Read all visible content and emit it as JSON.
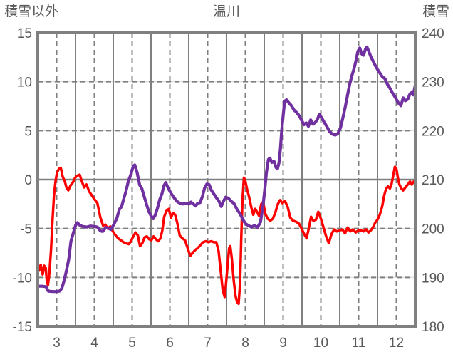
{
  "page": {
    "left_header": "積雪以外",
    "title_header": "温川",
    "right_header": "積雪"
  },
  "colors": {
    "background": "#ffffff",
    "text": "#595959",
    "grid_dash": "#7f7f7f",
    "grid_light": "#d9d9d9",
    "zero_line": "#808080",
    "border": "#808080",
    "series_red": "#ff0000",
    "series_purple": "#7030a0"
  },
  "chart_data": {
    "type": "line",
    "title": "温川",
    "x_axis": {
      "min": 2.5,
      "max": 12.5,
      "major_ticks": [
        3,
        4,
        5,
        6,
        7,
        8,
        9,
        10,
        11,
        12
      ],
      "boundary_lines": [
        3.5,
        4.5,
        5.5,
        6.5,
        7.5,
        8.5,
        9.5,
        10.5,
        11.5
      ]
    },
    "left_axis": {
      "label": "積雪以外",
      "min": -15,
      "max": 15,
      "ticks": [
        15,
        10,
        5,
        0,
        -5,
        -10,
        -15
      ],
      "zero_line": 0
    },
    "right_axis": {
      "label": "積雪",
      "min": 180,
      "max": 240,
      "ticks": [
        240,
        230,
        220,
        210,
        200,
        190,
        180
      ]
    },
    "grid": true,
    "legend": "none",
    "series": [
      {
        "name": "積雪以外",
        "axis": "left",
        "color": "#ff0000",
        "width": 3.5,
        "x": [
          2.5,
          2.54,
          2.58,
          2.63,
          2.67,
          2.71,
          2.74,
          2.77,
          2.81,
          2.85,
          2.89,
          2.93,
          2.97,
          3.01,
          3.06,
          3.11,
          3.16,
          3.21,
          3.26,
          3.31,
          3.37,
          3.43,
          3.49,
          3.55,
          3.61,
          3.67,
          3.73,
          3.79,
          3.86,
          3.93,
          4.0,
          4.08,
          4.16,
          4.23,
          4.29,
          4.35,
          4.42,
          4.49,
          4.56,
          4.63,
          4.7,
          4.77,
          4.84,
          4.91,
          4.97,
          5.03,
          5.09,
          5.15,
          5.21,
          5.27,
          5.33,
          5.39,
          5.45,
          5.51,
          5.57,
          5.63,
          5.69,
          5.75,
          5.8,
          5.85,
          5.91,
          5.97,
          6.03,
          6.08,
          6.14,
          6.2,
          6.26,
          6.33,
          6.4,
          6.47,
          6.54,
          6.6,
          6.67,
          6.74,
          6.81,
          6.88,
          6.95,
          7.02,
          7.09,
          7.16,
          7.23,
          7.29,
          7.35,
          7.4,
          7.45,
          7.49,
          7.53,
          7.57,
          7.6,
          7.64,
          7.69,
          7.74,
          7.78,
          7.82,
          7.86,
          7.89,
          7.92,
          7.96,
          7.99,
          8.04,
          8.1,
          8.16,
          8.21,
          8.26,
          8.31,
          8.36,
          8.42,
          8.47,
          8.53,
          8.59,
          8.66,
          8.73,
          8.8,
          8.86,
          8.92,
          8.98,
          9.05,
          9.12,
          9.19,
          9.26,
          9.34,
          9.42,
          9.5,
          9.56,
          9.62,
          9.68,
          9.74,
          9.8,
          9.87,
          9.93,
          10.0,
          10.07,
          10.14,
          10.21,
          10.28,
          10.35,
          10.42,
          10.5,
          10.57,
          10.64,
          10.71,
          10.78,
          10.85,
          10.92,
          10.99,
          11.06,
          11.13,
          11.2,
          11.26,
          11.32,
          11.38,
          11.44,
          11.5,
          11.56,
          11.62,
          11.68,
          11.73,
          11.78,
          11.83,
          11.87,
          11.92,
          11.96,
          12.0,
          12.04,
          12.08,
          12.13,
          12.18,
          12.24,
          12.3,
          12.36,
          12.41,
          12.46,
          12.5
        ],
        "y": [
          -8.6,
          -9.3,
          -8.7,
          -9.7,
          -8.8,
          -9.0,
          -10.3,
          -10.8,
          -9.5,
          -7.2,
          -4.2,
          -1.6,
          -0.2,
          0.7,
          1.1,
          1.2,
          0.3,
          -0.1,
          -0.8,
          -1.1,
          -0.6,
          -0.3,
          0.2,
          0.4,
          0.5,
          -0.2,
          -0.8,
          -0.5,
          -1.2,
          -1.6,
          -2.0,
          -2.4,
          -3.9,
          -4.7,
          -4.6,
          -5.0,
          -4.8,
          -5.3,
          -5.7,
          -6.0,
          -6.2,
          -6.4,
          -6.5,
          -6.6,
          -6.3,
          -5.8,
          -5.4,
          -5.7,
          -6.8,
          -6.5,
          -5.9,
          -5.8,
          -6.1,
          -6.2,
          -5.8,
          -6.1,
          -6.3,
          -6.0,
          -5.2,
          -3.8,
          -3.2,
          -3.0,
          -3.9,
          -3.4,
          -3.6,
          -4.5,
          -5.7,
          -6.0,
          -6.2,
          -7.0,
          -7.8,
          -7.5,
          -7.2,
          -7.0,
          -6.7,
          -6.4,
          -6.3,
          -6.4,
          -6.3,
          -6.4,
          -6.4,
          -7.3,
          -9.5,
          -11.3,
          -12.0,
          -10.5,
          -8.7,
          -7.0,
          -6.8,
          -8.0,
          -10.3,
          -11.9,
          -12.5,
          -12.7,
          -10.5,
          -6.0,
          -2.3,
          0.2,
          0.0,
          -0.9,
          -1.8,
          -2.9,
          -3.6,
          -3.0,
          -3.3,
          -3.7,
          -2.5,
          -2.3,
          -3.5,
          -4.0,
          -4.2,
          -4.0,
          -3.3,
          -2.5,
          -2.1,
          -2.4,
          -2.2,
          -2.8,
          -3.9,
          -4.2,
          -4.3,
          -4.5,
          -5.1,
          -5.6,
          -6.0,
          -5.0,
          -3.8,
          -4.2,
          -4.1,
          -3.3,
          -4.0,
          -4.9,
          -5.8,
          -6.5,
          -5.6,
          -5.1,
          -5.3,
          -5.2,
          -5.1,
          -5.5,
          -4.9,
          -5.3,
          -5.1,
          -5.4,
          -5.2,
          -5.2,
          -5.3,
          -5.1,
          -5.4,
          -5.2,
          -4.9,
          -4.4,
          -4.1,
          -3.6,
          -2.8,
          -1.6,
          -0.9,
          -0.7,
          -0.9,
          -0.5,
          0.5,
          1.3,
          1.1,
          0.2,
          -0.5,
          -0.9,
          -1.1,
          -0.8,
          -0.5,
          -0.2,
          -0.5,
          -0.2,
          -0.3
        ]
      },
      {
        "name": "積雪",
        "axis": "right",
        "color": "#7030a0",
        "width": 4.2,
        "x": [
          2.5,
          2.62,
          2.72,
          2.78,
          2.9,
          3.0,
          3.08,
          3.14,
          3.2,
          3.26,
          3.32,
          3.38,
          3.44,
          3.5,
          3.55,
          3.62,
          3.7,
          3.8,
          3.9,
          4.0,
          4.08,
          4.16,
          4.22,
          4.3,
          4.38,
          4.44,
          4.52,
          4.6,
          4.66,
          4.72,
          4.78,
          4.84,
          4.9,
          4.96,
          5.02,
          5.07,
          5.13,
          5.2,
          5.26,
          5.32,
          5.38,
          5.44,
          5.5,
          5.56,
          5.61,
          5.67,
          5.73,
          5.79,
          5.84,
          5.89,
          5.94,
          6.02,
          6.1,
          6.18,
          6.26,
          6.34,
          6.42,
          6.5,
          6.56,
          6.62,
          6.68,
          6.74,
          6.8,
          6.86,
          6.92,
          6.98,
          7.04,
          7.1,
          7.17,
          7.24,
          7.3,
          7.36,
          7.42,
          7.48,
          7.55,
          7.62,
          7.7,
          7.78,
          7.86,
          7.93,
          8.0,
          8.08,
          8.16,
          8.24,
          8.32,
          8.4,
          8.46,
          8.51,
          8.56,
          8.61,
          8.65,
          8.7,
          8.76,
          8.81,
          8.85,
          8.89,
          8.93,
          8.96,
          9.0,
          9.04,
          9.09,
          9.15,
          9.22,
          9.29,
          9.36,
          9.43,
          9.49,
          9.55,
          9.61,
          9.67,
          9.73,
          9.79,
          9.85,
          9.91,
          9.96,
          10.02,
          10.09,
          10.16,
          10.23,
          10.3,
          10.38,
          10.45,
          10.52,
          10.58,
          10.64,
          10.7,
          10.76,
          10.82,
          10.88,
          10.93,
          10.98,
          11.03,
          11.08,
          11.13,
          11.18,
          11.22,
          11.27,
          11.33,
          11.39,
          11.45,
          11.51,
          11.57,
          11.63,
          11.7,
          11.76,
          11.82,
          11.88,
          11.94,
          12.0,
          12.06,
          12.12,
          12.18,
          12.24,
          12.3,
          12.36,
          12.41,
          12.45,
          12.5
        ],
        "y": [
          188.2,
          188.2,
          188.1,
          187.2,
          187.1,
          187.1,
          187.2,
          187.8,
          189.4,
          191.4,
          193.7,
          197.4,
          199.0,
          200.6,
          201.2,
          200.6,
          200.4,
          200.3,
          200.5,
          200.4,
          200.3,
          199.5,
          199.4,
          200.2,
          200.0,
          199.8,
          200.9,
          202.2,
          203.9,
          204.5,
          206.1,
          207.7,
          209.7,
          210.9,
          212.5,
          213.0,
          211.5,
          208.9,
          208.1,
          206.5,
          205.0,
          203.5,
          202.6,
          202.0,
          202.7,
          204.1,
          205.9,
          207.1,
          208.7,
          209.4,
          208.5,
          207.3,
          206.4,
          205.6,
          205.2,
          205.0,
          205.1,
          205.0,
          205.4,
          205.0,
          204.6,
          205.2,
          205.3,
          206.5,
          208.3,
          209.1,
          209.0,
          207.8,
          207.0,
          206.2,
          205.6,
          204.5,
          205.6,
          206.4,
          206.2,
          205.6,
          205.1,
          203.9,
          203.0,
          201.9,
          201.0,
          200.6,
          200.3,
          200.6,
          200.2,
          201.3,
          204.2,
          207.6,
          211.6,
          214.1,
          214.4,
          213.5,
          213.7,
          212.5,
          212.2,
          213.4,
          216.5,
          219.8,
          223.0,
          226.0,
          226.3,
          225.7,
          225.1,
          224.2,
          223.7,
          223.0,
          222.1,
          221.2,
          221.6,
          220.9,
          222.2,
          221.3,
          221.7,
          222.3,
          223.4,
          222.6,
          221.7,
          220.8,
          219.8,
          219.3,
          219.1,
          219.4,
          220.6,
          222.5,
          224.6,
          227.0,
          229.4,
          231.2,
          232.7,
          234.3,
          236.2,
          236.9,
          235.7,
          235.4,
          236.6,
          237.1,
          236.2,
          235.0,
          234.1,
          233.2,
          232.4,
          231.7,
          231.0,
          230.6,
          229.5,
          228.8,
          227.9,
          227.2,
          226.4,
          225.6,
          225.1,
          226.7,
          226.1,
          226.4,
          227.5,
          227.8,
          227.3,
          229.3
        ]
      }
    ]
  }
}
